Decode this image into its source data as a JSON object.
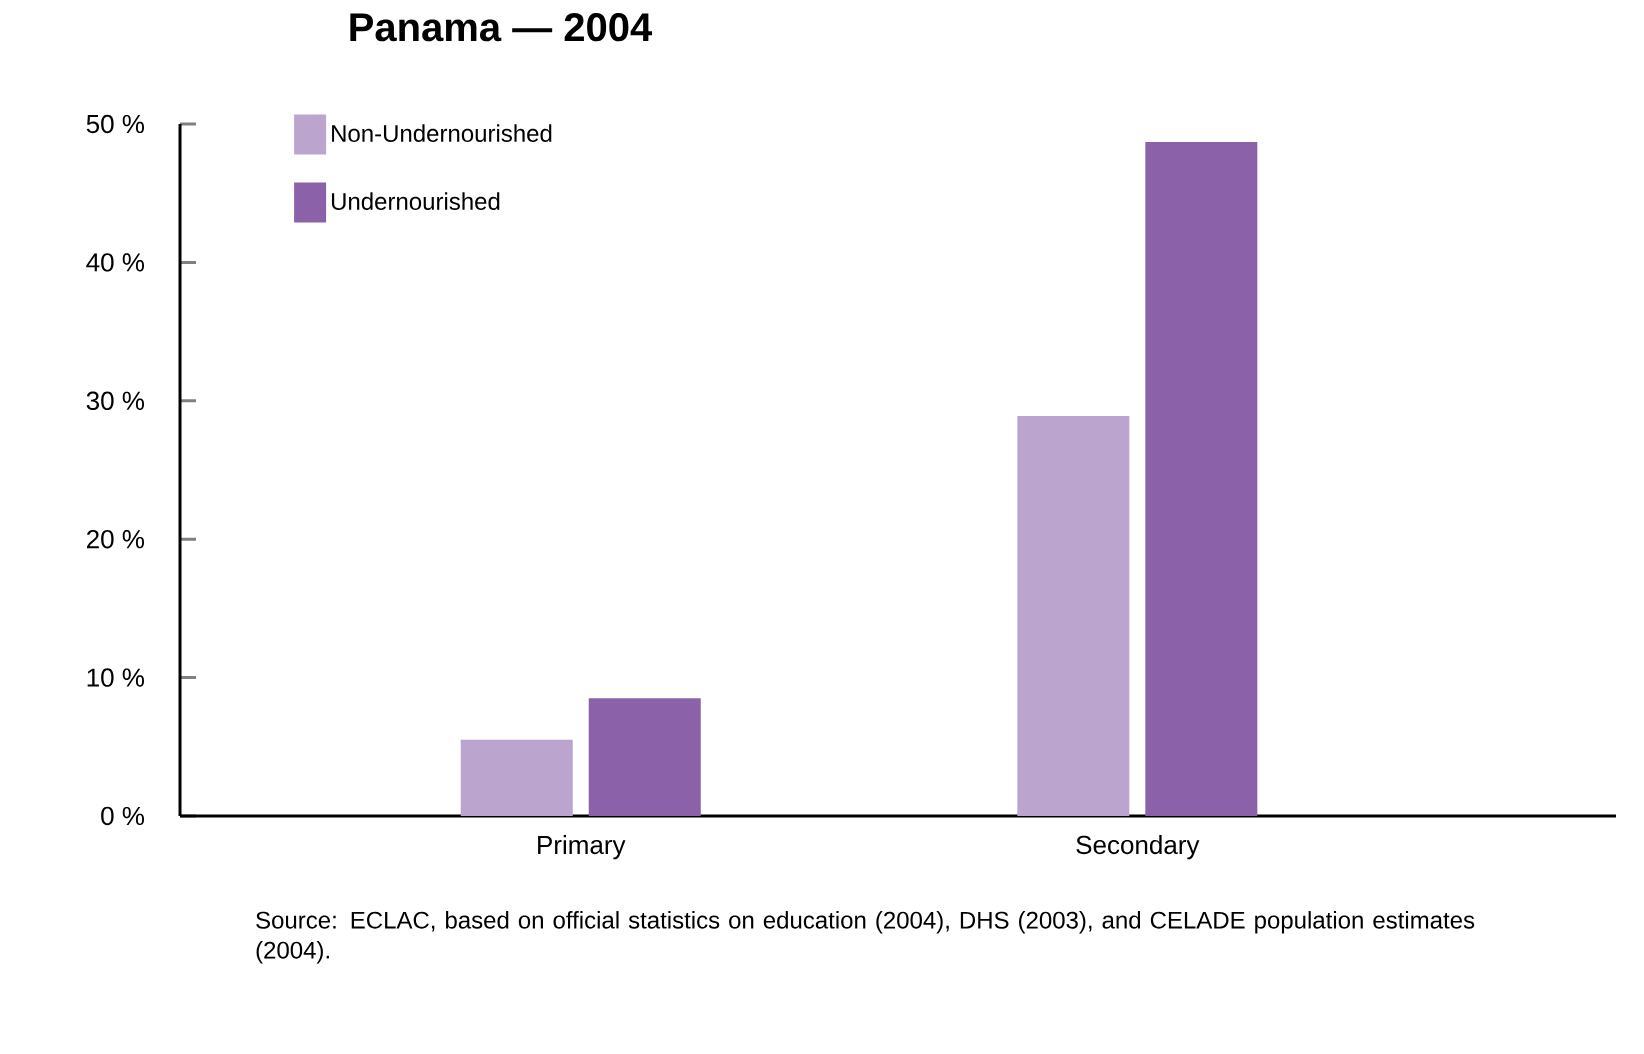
{
  "chart_data": {
    "type": "bar",
    "title": "Panama — 2004",
    "categories": [
      "Primary",
      "Secondary"
    ],
    "series": [
      {
        "name": "Non-Undernourished",
        "color": "#bba5cf",
        "values": [
          5.5,
          28.9
        ]
      },
      {
        "name": "Undernourished",
        "color": "#8b62a9",
        "values": [
          8.5,
          48.7
        ]
      }
    ],
    "ylim": [
      0,
      50
    ],
    "yticks": [
      {
        "value": 0,
        "label": "0 %"
      },
      {
        "value": 10,
        "label": "10 %"
      },
      {
        "value": 20,
        "label": "20 %"
      },
      {
        "value": 30,
        "label": "30 %"
      },
      {
        "value": 40,
        "label": "40 %"
      },
      {
        "value": 50,
        "label": "50 %"
      }
    ],
    "legend": "top left",
    "annotations": [
      "Source: ECLAC, based on official statistics on education (2004), DHS (2003), and CELADE population estimates (2004)."
    ]
  }
}
